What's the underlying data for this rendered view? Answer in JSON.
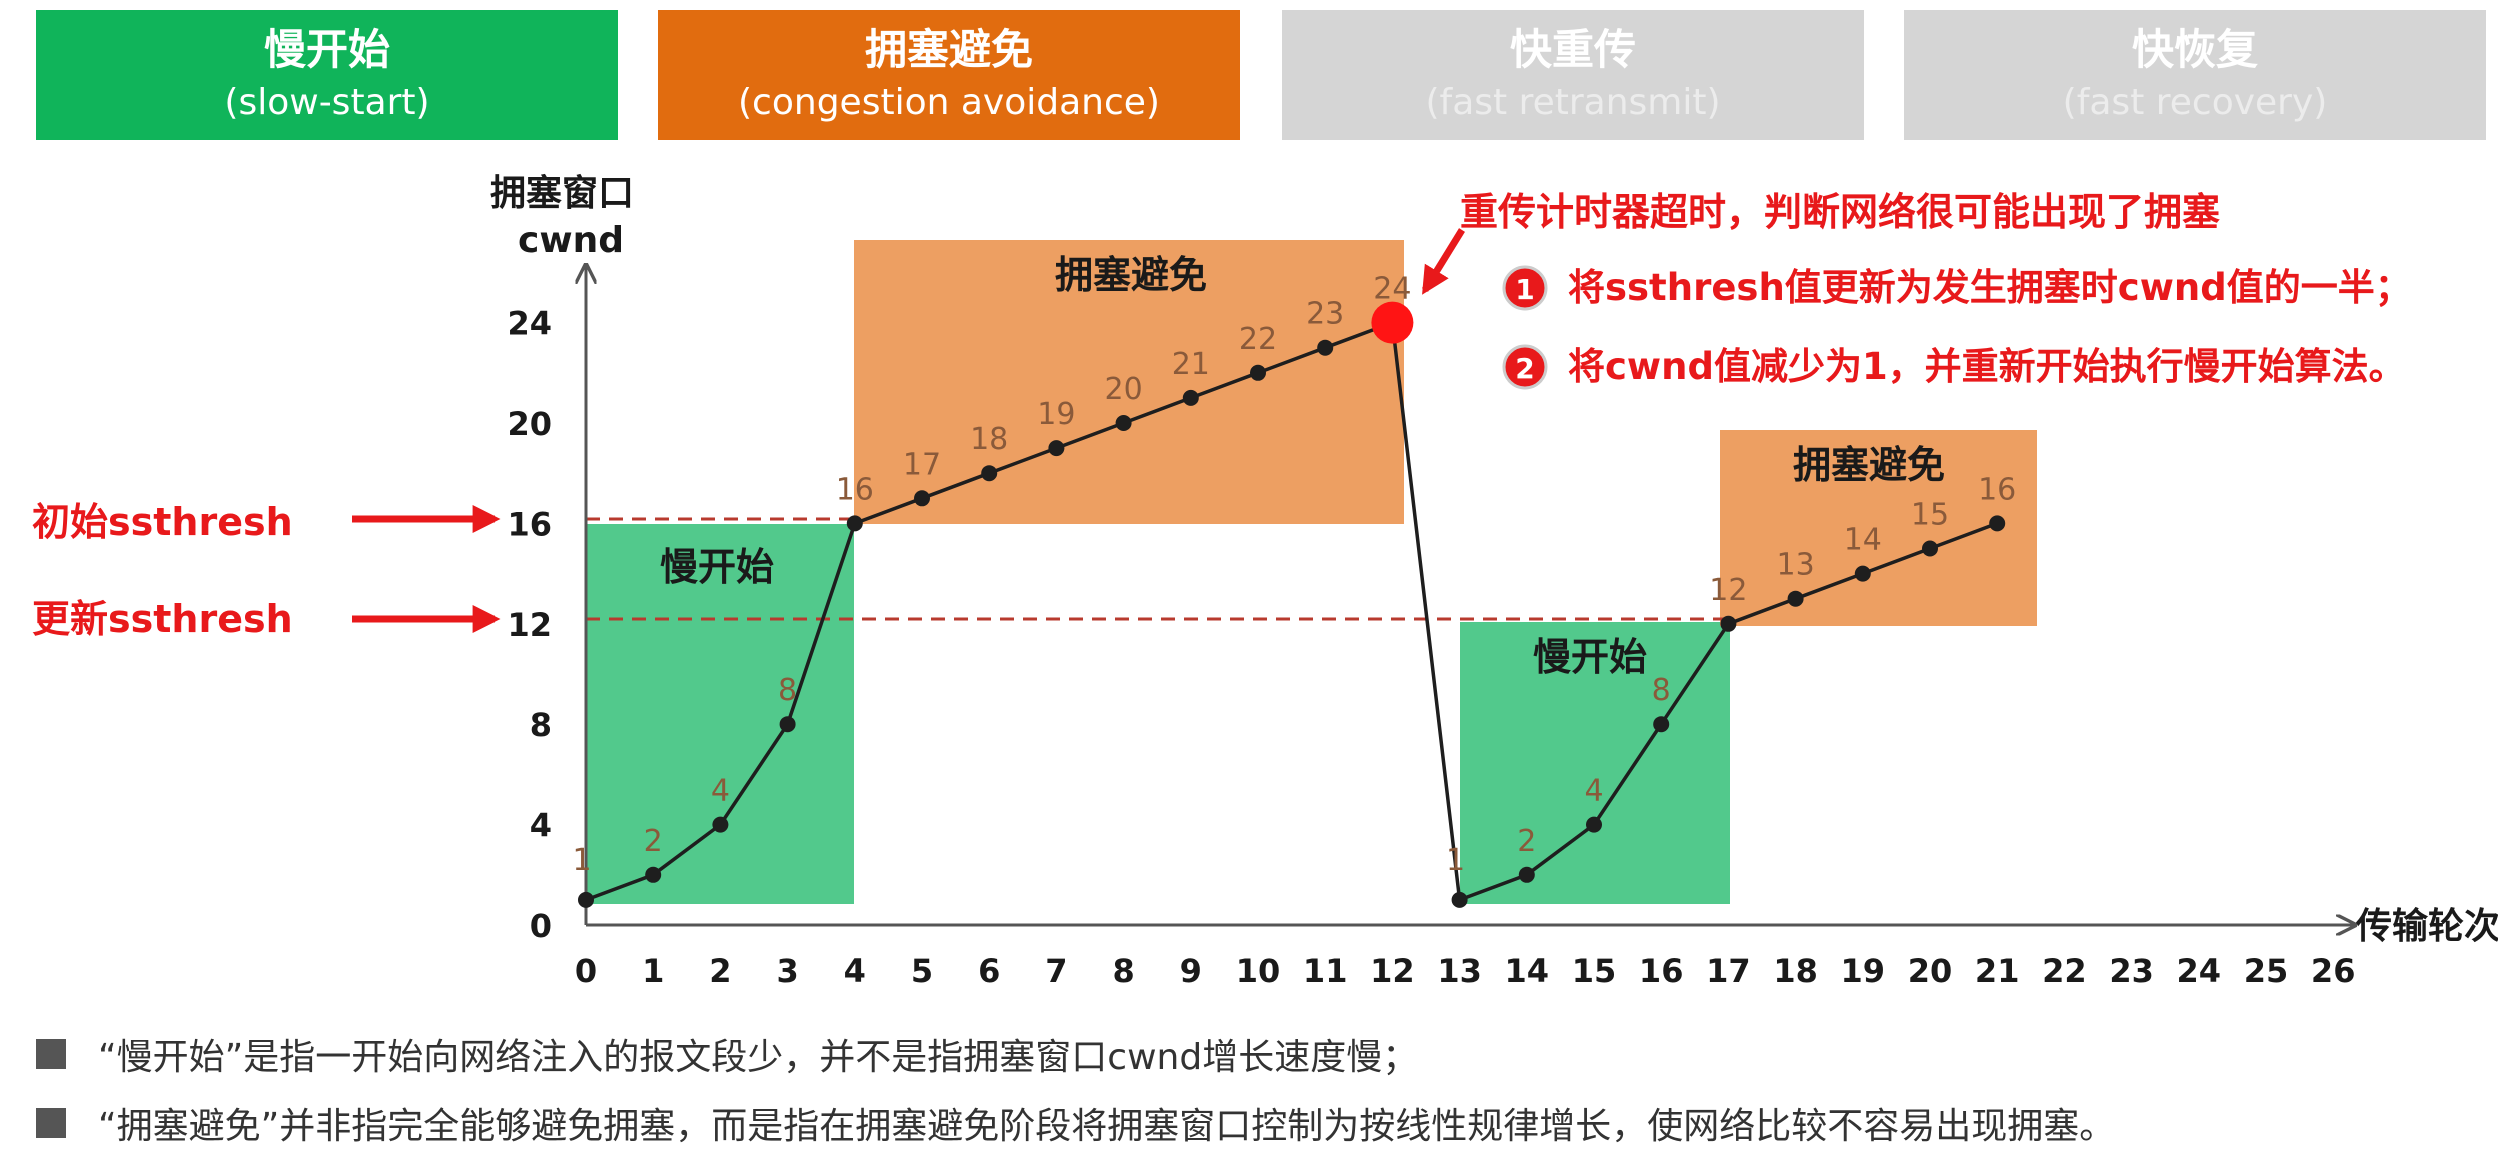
{
  "phases": [
    {
      "cn": "慢开始",
      "en": "(slow-start)"
    },
    {
      "cn": "拥塞避免",
      "en": "(congestion avoidance)"
    },
    {
      "cn": "快重传",
      "en": "(fast retransmit)"
    },
    {
      "cn": "快恢复",
      "en": "(fast recovery)"
    }
  ],
  "axis": {
    "y_label_cn": "拥塞窗口",
    "y_label_en": "cwnd",
    "x_label": "传输轮次",
    "y_ticks": [
      0,
      4,
      8,
      12,
      16,
      20,
      24
    ],
    "x_ticks": [
      0,
      1,
      2,
      3,
      4,
      5,
      6,
      7,
      8,
      9,
      10,
      11,
      12,
      13,
      14,
      15,
      16,
      17,
      18,
      19,
      20,
      21,
      22,
      23,
      24,
      25,
      26
    ]
  },
  "thresholds": {
    "initial": {
      "label": "初始ssthresh",
      "value": 16
    },
    "updated": {
      "label": "更新ssthresh",
      "value": 12
    }
  },
  "regions": {
    "slow_start_1": "慢开始",
    "cong_avoid_1": "拥塞避免",
    "slow_start_2": "慢开始",
    "cong_avoid_2": "拥塞避免"
  },
  "annotation": {
    "headline": "重传计时器超时，判断网络很可能出现了拥塞",
    "step1_num": "1",
    "step1": "将ssthresh值更新为发生拥塞时cwnd值的一半；",
    "step2_num": "2",
    "step2": "将cwnd值减少为1，并重新开始执行慢开始算法。"
  },
  "colors": {
    "slow_start": "#10b45a",
    "congestion_avoidance": "#e16c0f",
    "inactive": "#d5d5d5",
    "alert_red": "#e8191b",
    "curve": "#1e1e1e"
  },
  "notes": [
    "“慢开始”是指一开始向网络注入的报文段少，并不是指拥塞窗口cwnd增长速度慢；",
    "“拥塞避免”并非指完全能够避免拥塞，而是指在拥塞避免阶段将拥塞窗口控制为按线性规律增长，使网络比较不容易出现拥塞。"
  ],
  "chart_data": {
    "type": "line",
    "xlabel": "传输轮次",
    "ylabel": "拥塞窗口 cwnd",
    "xlim": [
      0,
      26
    ],
    "ylim": [
      0,
      24
    ],
    "series": [
      {
        "x": [
          0,
          1,
          2,
          3,
          4,
          5,
          6,
          7,
          8,
          9,
          10,
          11,
          12,
          13,
          14,
          15,
          16,
          17,
          18,
          19,
          20,
          21
        ],
        "y": [
          1,
          2,
          4,
          8,
          16,
          17,
          18,
          19,
          20,
          21,
          22,
          23,
          24,
          1,
          2,
          4,
          8,
          12,
          13,
          14,
          15,
          16
        ]
      }
    ],
    "point_labels": [
      "1",
      "2",
      "4",
      "8",
      "16",
      "17",
      "18",
      "19",
      "20",
      "21",
      "22",
      "23",
      "24",
      "1",
      "2",
      "4",
      "8",
      "12",
      "13",
      "14",
      "15",
      "16"
    ],
    "timeout_point": {
      "x": 12,
      "y": 24
    }
  }
}
